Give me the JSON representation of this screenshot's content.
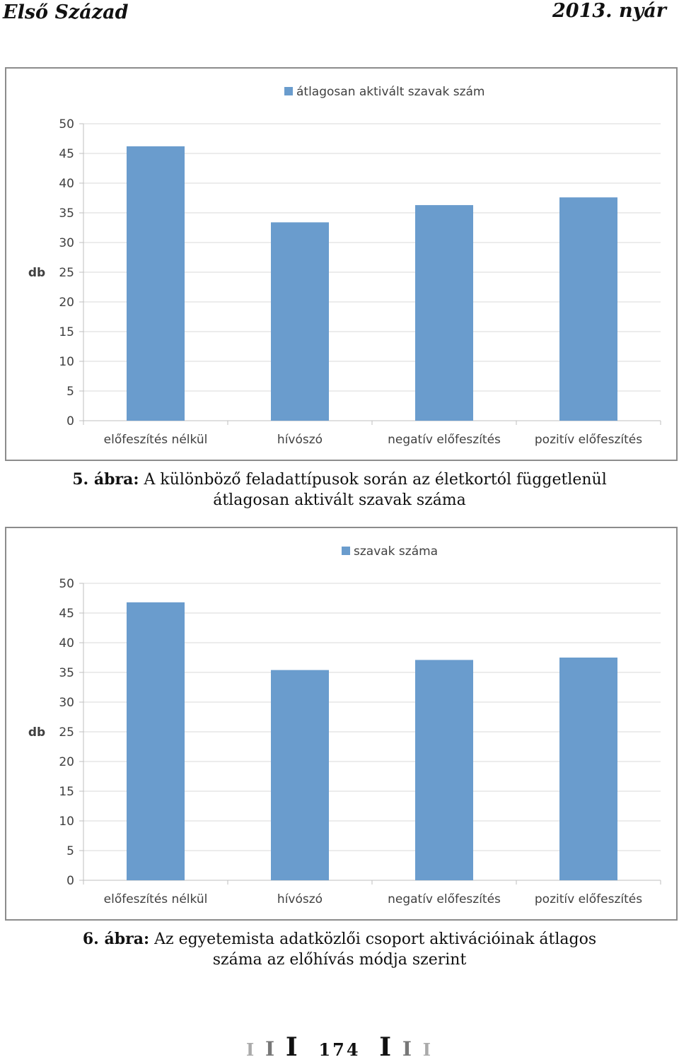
{
  "header": {
    "left": "Első Század",
    "right": "2013. nyár"
  },
  "captions": [
    {
      "label": "5. ábra:",
      "text": "A különböző feladattípusok során az életkortól függetlenül",
      "text2": "átlagosan aktivált szavak száma"
    },
    {
      "label": "6. ábra:",
      "text": "Az egyetemista adatközlői csoport aktivációinak átlagos",
      "text2": "száma az előhívás módja szerint"
    }
  ],
  "footer": {
    "page_number": "174",
    "ornament_left": [
      "I",
      "I",
      "I"
    ],
    "ornament_right": [
      "I",
      "I",
      "I"
    ]
  },
  "colors": {
    "bar": "#6a9ccd",
    "grid": "#d9d9d9",
    "axis": "#bfbfbf",
    "text": "#404040"
  },
  "chart_data": [
    {
      "type": "bar",
      "categories": [
        "előfeszítés nélkül",
        "hívószó",
        "negatív előfeszítés",
        "pozitív előfeszítés"
      ],
      "series": [
        {
          "name": "átlagosan aktivált szavak szám",
          "values": [
            46.2,
            33.4,
            36.3,
            37.6
          ]
        }
      ],
      "ylabel": "db",
      "ylim": [
        0,
        50
      ],
      "yticks": [
        0,
        5,
        10,
        15,
        20,
        25,
        30,
        35,
        40,
        45,
        50
      ],
      "legend": "top-center",
      "grid": true
    },
    {
      "type": "bar",
      "categories": [
        "előfeszítés nélkül",
        "hívószó",
        "negatív előfeszítés",
        "pozitív előfeszítés"
      ],
      "series": [
        {
          "name": "szavak száma",
          "values": [
            46.8,
            35.4,
            37.1,
            37.5
          ]
        }
      ],
      "ylabel": "db",
      "ylim": [
        0,
        50
      ],
      "yticks": [
        0,
        5,
        10,
        15,
        20,
        25,
        30,
        35,
        40,
        45,
        50
      ],
      "legend": "top-center",
      "grid": true
    }
  ]
}
